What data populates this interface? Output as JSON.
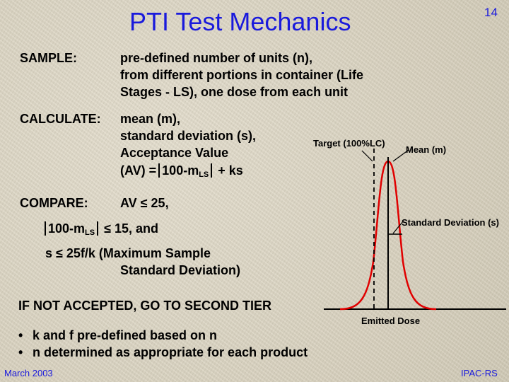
{
  "header": {
    "title": "PTI Test Mechanics",
    "page_number": "14"
  },
  "sample": {
    "label": "SAMPLE:",
    "lines": [
      "pre-defined number of units (n),",
      "from different portions in container (Life",
      "Stages - LS),   one dose from each unit"
    ]
  },
  "calculate": {
    "label": "CALCULATE:",
    "lines": [
      "mean (m),",
      "standard deviation (s),",
      "Acceptance Value"
    ],
    "av_prefix": "(AV) =",
    "av_core": "100-m",
    "av_sub": "LS",
    "av_suffix": "+ ks"
  },
  "compare": {
    "label": "COMPARE:",
    "av_line": "AV ≤  25,",
    "abs_core": "100-m",
    "abs_sub": "LS",
    "abs_suffix": "≤  15, and",
    "s_line": "s ≤  25f/k  (Maximum Sample",
    "s_line2": "Standard Deviation)"
  },
  "not_accepted": "IF NOT ACCEPTED, GO TO SECOND TIER",
  "bullets": [
    "k and f pre-defined based on n",
    "n determined as appropriate for each product"
  ],
  "figure": {
    "target_label": "Target (100%LC)",
    "mean_label": "Mean (m)",
    "sd_label": "Standard Deviation (s)",
    "emitted_label": "Emitted Dose"
  },
  "footer": {
    "date": "March 2003",
    "org": "IPAC-RS"
  },
  "colors": {
    "title": "#1a1adc",
    "curve": "#e00000",
    "text": "#000000"
  }
}
